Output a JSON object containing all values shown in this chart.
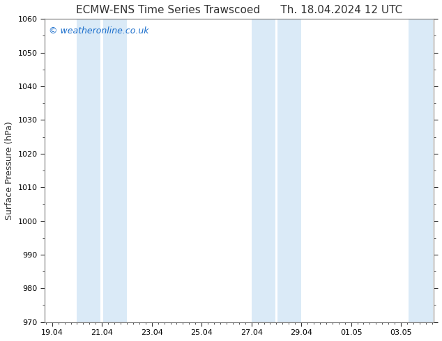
{
  "title_left": "ECMW-ENS Time Series Trawscoed",
  "title_right": "Th. 18.04.2024 12 UTC",
  "ylabel": "Surface Pressure (hPa)",
  "ylim": [
    970,
    1060
  ],
  "yticks": [
    970,
    980,
    990,
    1000,
    1010,
    1020,
    1030,
    1040,
    1050,
    1060
  ],
  "xtick_labels": [
    "19.04",
    "21.04",
    "23.04",
    "25.04",
    "27.04",
    "29.04",
    "01.05",
    "03.05"
  ],
  "xtick_positions": [
    0,
    2,
    4,
    6,
    8,
    10,
    12,
    14
  ],
  "xlim": [
    -0.3,
    15.3
  ],
  "bg_color": "#ffffff",
  "plot_bg_color": "#ffffff",
  "shaded_bands": [
    {
      "x_start": 1.0,
      "x_end": 1.95,
      "color": "#daeaf7"
    },
    {
      "x_start": 2.05,
      "x_end": 3.0,
      "color": "#daeaf7"
    },
    {
      "x_start": 8.0,
      "x_end": 8.95,
      "color": "#daeaf7"
    },
    {
      "x_start": 9.05,
      "x_end": 10.0,
      "color": "#daeaf7"
    },
    {
      "x_start": 14.3,
      "x_end": 15.3,
      "color": "#daeaf7"
    }
  ],
  "watermark_text": "© weatheronline.co.uk",
  "watermark_color": "#1a6ecc",
  "watermark_fontsize": 9,
  "title_fontsize": 11,
  "axis_label_fontsize": 9,
  "tick_fontsize": 8,
  "spine_color": "#888888",
  "tick_color": "#333333"
}
